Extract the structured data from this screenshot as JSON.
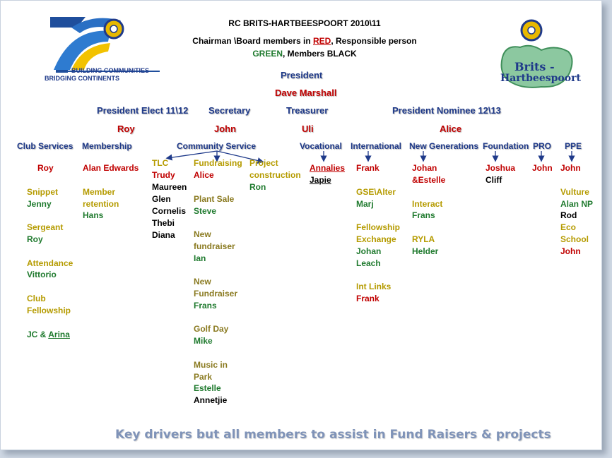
{
  "header": {
    "title": "RC BRITS-HARTBEESPOORT  2010\\11",
    "legend_prefix": "Chairman \\Board members in ",
    "legend_red": "RED",
    "legend_mid": ", Responsible person",
    "legend_green": "GREEN",
    "legend_suffix": ",   Members BLACK"
  },
  "logo_left": {
    "line1": "BUILDING COMMUNITIES",
    "line2": "BRIDGING CONTINENTS"
  },
  "logo_right": {
    "line1": "Brits -",
    "line2": "Hartbeespoort"
  },
  "president": {
    "label": "President",
    "name": "Dave Marshall"
  },
  "officers": {
    "pe_label": "President Elect 11\\12",
    "pe_name": "Roy",
    "sec_label": "Secretary",
    "sec_name": "John",
    "tre_label": "Treasurer",
    "tre_name": "Uli",
    "pn_label": "President Nominee 12\\13",
    "pn_name": "Alice"
  },
  "columns": {
    "club_services": "Club Services",
    "membership": "Membership",
    "community_service": "Community Service",
    "vocational": "Vocational",
    "international": "International",
    "new_generations": "New Generations",
    "foundation": "Foundation",
    "pro": "PRO",
    "ppe": "PPE"
  },
  "club_services": {
    "chair": "Roy",
    "snippet_label": "Snippet",
    "snippet_name": "Jenny",
    "sergeant_label": "Sergeant",
    "sergeant_name": "Roy",
    "attendance_label": "Attendance",
    "attendance_name": "Vittorio",
    "fellowship_label": "Club\nFellowship",
    "fellowship_name_a": "JC & ",
    "fellowship_name_b": "Arina"
  },
  "membership": {
    "chair": "Alan Edwards",
    "retention_label": "Member\nretention",
    "retention_name": "Hans"
  },
  "community": {
    "tlc_label": "TLC",
    "tlc_name": "Trudy",
    "tlc_members": "Maureen\nGlen\nCornelis\nThebi\nDiana",
    "fund_label": "Fundraising",
    "fund_name": "Alice",
    "plant_label": "Plant Sale",
    "plant_name": "Steve",
    "newfund1_label": "New\nfundraiser",
    "newfund1_name": "Ian",
    "newfund2_label": "New\nFundraiser",
    "newfund2_name": "Frans",
    "golf_label": "Golf Day",
    "golf_name": "Mike",
    "music_label": "Music in\nPark",
    "music_name": "Estelle",
    "music_member": "Annetjie",
    "project_label": "Project\nconstruction",
    "project_name": "Ron"
  },
  "vocational": {
    "chair": "Annalies",
    "member": "Japie"
  },
  "international": {
    "chair": "Frank",
    "gse_label": "GSE\\Alter",
    "gse_name": "Marj",
    "fe_label": "Fellowship\nExchange",
    "fe_name": "Johan\nLeach",
    "links_label": "Int Links",
    "links_name": "Frank"
  },
  "new_gen": {
    "chair": "Johan\n&Estelle",
    "interact_label": "Interact",
    "interact_name": "Frans",
    "ryla_label": "RYLA",
    "ryla_name": "Helder"
  },
  "foundation": {
    "chair": "Joshua",
    "member": "Cliff"
  },
  "pro": {
    "chair": "John"
  },
  "ppe": {
    "chair": "John",
    "vulture_label": "Vulture",
    "vulture_name": "Alan NP",
    "vulture_member": "Rod",
    "eco_label": "Eco\nSchool",
    "eco_name": "John"
  },
  "footer": "Key drivers but all members to assist in Fund Raisers & projects",
  "colors": {
    "board": "#c00000",
    "responsible": "#1f7a2e",
    "members": "#000000",
    "heading": "#1f3a8a",
    "label": "#b59b00"
  },
  "icons": [
    "rotary-wheel-icon",
    "arrow-down-icon"
  ]
}
